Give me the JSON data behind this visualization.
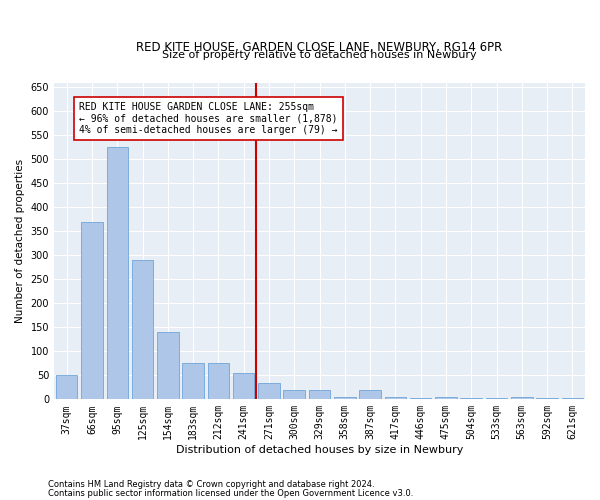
{
  "title": "RED KITE HOUSE, GARDEN CLOSE LANE, NEWBURY, RG14 6PR",
  "subtitle": "Size of property relative to detached houses in Newbury",
  "xlabel": "Distribution of detached houses by size in Newbury",
  "ylabel": "Number of detached properties",
  "categories": [
    "37sqm",
    "66sqm",
    "95sqm",
    "125sqm",
    "154sqm",
    "183sqm",
    "212sqm",
    "241sqm",
    "271sqm",
    "300sqm",
    "329sqm",
    "358sqm",
    "387sqm",
    "417sqm",
    "446sqm",
    "475sqm",
    "504sqm",
    "533sqm",
    "563sqm",
    "592sqm",
    "621sqm"
  ],
  "values": [
    50,
    370,
    525,
    290,
    140,
    75,
    75,
    55,
    35,
    20,
    20,
    5,
    20,
    5,
    2,
    5,
    2,
    2,
    5,
    2,
    2
  ],
  "bar_color": "#aec6e8",
  "bar_edgecolor": "#5b9bd5",
  "background_color": "#e8eef6",
  "vline_color": "#cc0000",
  "annotation_text": "RED KITE HOUSE GARDEN CLOSE LANE: 255sqm\n← 96% of detached houses are smaller (1,878)\n4% of semi-detached houses are larger (79) →",
  "annotation_box_color": "#ffffff",
  "annotation_box_edgecolor": "#cc0000",
  "ylim": [
    0,
    660
  ],
  "yticks": [
    0,
    50,
    100,
    150,
    200,
    250,
    300,
    350,
    400,
    450,
    500,
    550,
    600,
    650
  ],
  "footnote1": "Contains HM Land Registry data © Crown copyright and database right 2024.",
  "footnote2": "Contains public sector information licensed under the Open Government Licence v3.0."
}
